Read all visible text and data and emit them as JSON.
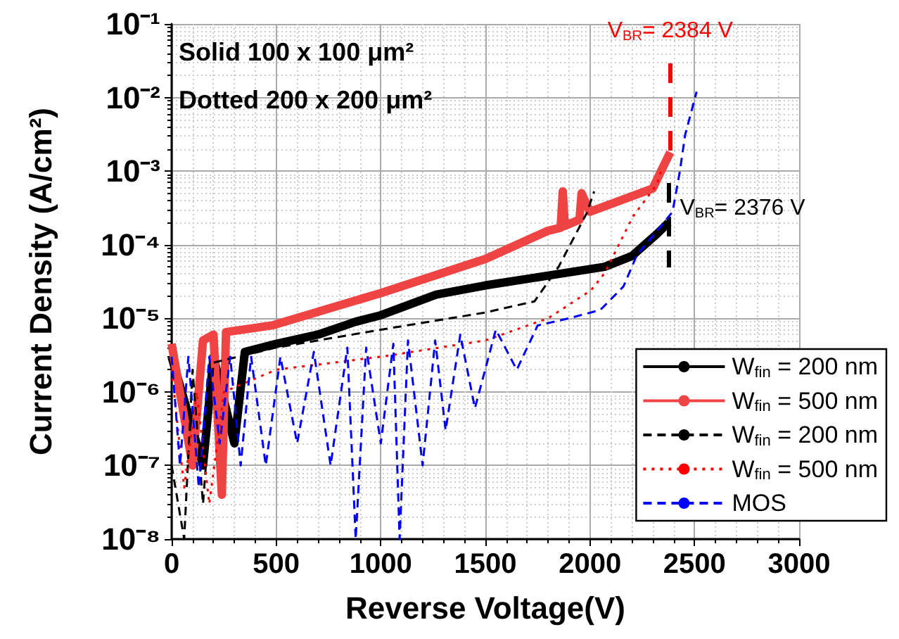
{
  "chart_data": {
    "type": "line",
    "xlabel": "Reverse Voltage(V)",
    "ylabel": "Current Density (A/cm²)",
    "xlim": [
      0,
      3000
    ],
    "xticks": [
      0,
      500,
      1000,
      1500,
      2000,
      2500,
      3000
    ],
    "ylim": [
      1e-08,
      0.1
    ],
    "log": "y",
    "yticks": [
      {
        "value": 1e-08,
        "label": "10⁻⁸"
      },
      {
        "value": 1e-07,
        "label": "10⁻⁷"
      },
      {
        "value": 1e-06,
        "label": "10⁻⁶"
      },
      {
        "value": 1e-05,
        "label": "10⁻⁵"
      },
      {
        "value": 0.0001,
        "label": "10⁻⁴"
      },
      {
        "value": 0.001,
        "label": "10⁻³"
      },
      {
        "value": 0.01,
        "label": "10⁻²"
      },
      {
        "value": 0.1,
        "label": "10⁻¹"
      }
    ],
    "grid": true,
    "legend": "bottom right",
    "marker": "none",
    "annotations": [
      "Solid 100 x 100 μm²",
      "Dotted 200 x 200 μm²"
    ],
    "ref_lines": [
      {
        "axis": "x",
        "value": 2384,
        "label": "V$_{BR}$= 2384 V",
        "color": "#ff0000",
        "line_style": "dashed"
      },
      {
        "axis": "x",
        "value": 2376,
        "label": "V$_{BR}$= 2376 V",
        "color": "#000000",
        "line_style": "dashed"
      }
    ],
    "series": [
      {
        "name": "W$_{fin}$ = 200 nm",
        "color": "#000000",
        "line_style": "solid",
        "x": [
          0,
          150,
          200,
          300,
          350,
          500,
          700,
          880,
          1000,
          1265,
          1500,
          1800,
          2070,
          2200,
          2320,
          2376
        ],
        "values": [
          3e-06,
          1e-07,
          3e-06,
          2e-07,
          3.5e-06,
          4.5e-06,
          6e-06,
          9e-06,
          1.1e-05,
          2.1e-05,
          2.8e-05,
          3.8e-05,
          5e-05,
          7e-05,
          0.00014,
          0.0002
        ]
      },
      {
        "name": "W$_{fin}$ = 500 nm",
        "color": "#f04444",
        "line_style": "solid",
        "x": [
          0,
          100,
          150,
          200,
          240,
          260,
          480,
          1000,
          1500,
          1800,
          1860,
          1870,
          1880,
          1950,
          1960,
          2000,
          2300,
          2340,
          2384
        ],
        "values": [
          4.5e-06,
          1e-07,
          5e-06,
          6e-06,
          4e-08,
          6.5e-06,
          8e-06,
          2.2e-05,
          6.4e-05,
          0.000155,
          0.00017,
          0.00053,
          0.00018,
          0.00022,
          0.0005,
          0.00028,
          0.00058,
          0.001,
          0.0018
        ]
      },
      {
        "name": "W$_{fin}$ = 200 nm",
        "color": "#000000",
        "line_style": "dashed",
        "x": [
          0,
          60,
          100,
          150,
          200,
          500,
          1000,
          1500,
          1735,
          1850,
          1985,
          2020
        ],
        "values": [
          1e-07,
          1e-08,
          2e-06,
          3e-08,
          2.5e-06,
          4e-06,
          7e-06,
          1.2e-05,
          1.7e-05,
          5e-05,
          0.00027,
          0.00053
        ]
      },
      {
        "name": "W$_{fin}$ = 500 nm",
        "color": "#ff0000",
        "line_style": "dotted",
        "x": [
          0,
          60,
          120,
          180,
          250,
          500,
          1000,
          1500,
          1800,
          2005,
          2070,
          2205,
          2320,
          2340
        ],
        "values": [
          2e-06,
          5e-08,
          1e-06,
          3e-08,
          1e-06,
          2e-06,
          3e-06,
          5e-06,
          1e-05,
          2.4e-05,
          4.1e-05,
          0.00024,
          0.00066,
          0.001
        ]
      },
      {
        "name": "MOS",
        "color": "#0000ff",
        "line_style": "dashed",
        "x": [
          0,
          40,
          80,
          130,
          180,
          230,
          280,
          330,
          380,
          450,
          520,
          600,
          680,
          760,
          840,
          880,
          930,
          1000,
          1060,
          1090,
          1130,
          1200,
          1260,
          1310,
          1380,
          1450,
          1550,
          1650,
          1750,
          1900,
          2050,
          2160,
          2225,
          2300,
          2395,
          2430,
          2455,
          2510
        ],
        "values": [
          3e-06,
          1e-07,
          3e-06,
          5e-08,
          3e-06,
          2e-07,
          3e-06,
          1e-07,
          3e-06,
          1e-07,
          3e-06,
          2e-07,
          3.5e-06,
          1e-07,
          4e-06,
          1e-08,
          4e-06,
          2e-07,
          4.5e-06,
          1e-08,
          5e-06,
          1e-07,
          5e-06,
          3e-07,
          6e-06,
          6e-07,
          7e-06,
          2e-06,
          8e-06,
          1e-05,
          1.3e-05,
          2.7e-05,
          7.3e-05,
          0.00013,
          0.00028,
          0.001,
          0.0031,
          0.012
        ]
      }
    ]
  }
}
